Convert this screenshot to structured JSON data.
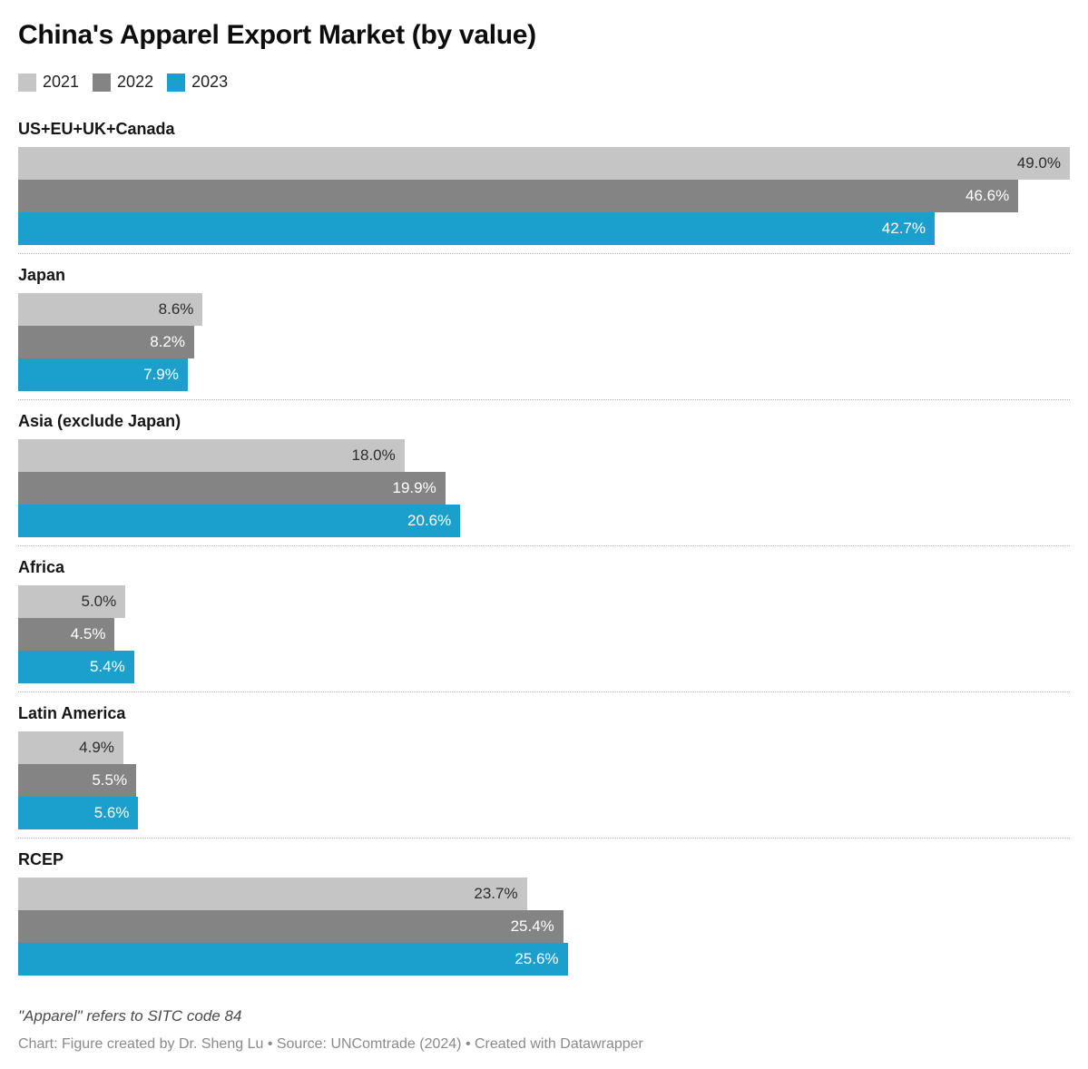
{
  "chart_data": {
    "type": "bar",
    "orientation": "horizontal",
    "title": "China's Apparel Export Market (by value)",
    "categories": [
      "US+EU+UK+Canada",
      "Japan",
      "Asia (exclude Japan)",
      "Africa",
      "Latin America",
      "RCEP"
    ],
    "series": [
      {
        "name": "2021",
        "color": "#c5c5c5",
        "label_color": "#2c2c2c",
        "values": [
          49.0,
          8.6,
          18.0,
          5.0,
          4.9,
          23.7
        ]
      },
      {
        "name": "2022",
        "color": "#848484",
        "label_color": "#ffffff",
        "values": [
          46.6,
          8.2,
          19.9,
          4.5,
          5.5,
          25.4
        ]
      },
      {
        "name": "2023",
        "color": "#1ba0ce",
        "label_color": "#ffffff",
        "values": [
          42.7,
          7.9,
          20.6,
          5.4,
          5.6,
          25.6
        ]
      }
    ],
    "value_suffix": "%",
    "value_decimals": 1,
    "xmax": 49.0,
    "grid": false,
    "legend_position": "top-left"
  },
  "footer": {
    "note": "\"Apparel\" refers to SITC code 84",
    "credit": "Chart: Figure created by Dr. Sheng Lu • Source: UNComtrade (2024) • Created with Datawrapper"
  }
}
